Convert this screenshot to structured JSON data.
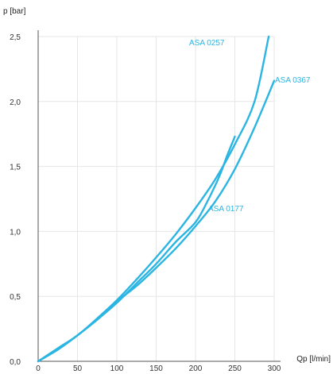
{
  "chart_data": {
    "type": "line",
    "title": "",
    "xlabel": "Qp [l/min]",
    "ylabel": "p [bar]",
    "xlim": [
      0,
      300
    ],
    "ylim": [
      0,
      2.5
    ],
    "x_ticks": [
      "0",
      "50",
      "100",
      "150",
      "200",
      "250",
      "300"
    ],
    "y_ticks": [
      "0,0",
      "0,5",
      "1,0",
      "1,5",
      "2,0",
      "2,5"
    ],
    "grid": true,
    "legend": "none (inline labels)",
    "line_color": "#2bb5e2",
    "series": [
      {
        "name": "ASA 0257",
        "x": [
          0,
          25,
          50,
          75,
          100,
          125,
          150,
          175,
          200,
          225,
          250,
          275,
          293
        ],
        "y": [
          0,
          0.1,
          0.2,
          0.33,
          0.47,
          0.63,
          0.8,
          0.98,
          1.18,
          1.4,
          1.67,
          2.0,
          2.5
        ]
      },
      {
        "name": "ASA 0367",
        "x": [
          0,
          25,
          50,
          75,
          100,
          125,
          150,
          175,
          200,
          225,
          250,
          275,
          300
        ],
        "y": [
          0,
          0.09,
          0.2,
          0.32,
          0.46,
          0.58,
          0.72,
          0.87,
          1.04,
          1.23,
          1.48,
          1.8,
          2.16
        ]
      },
      {
        "name": "ASA 0177",
        "x": [
          0,
          25,
          50,
          75,
          100,
          125,
          150,
          175,
          200,
          215,
          230,
          240,
          250
        ],
        "y": [
          0,
          0.09,
          0.2,
          0.32,
          0.45,
          0.6,
          0.75,
          0.92,
          1.07,
          1.23,
          1.42,
          1.58,
          1.73
        ]
      }
    ]
  }
}
